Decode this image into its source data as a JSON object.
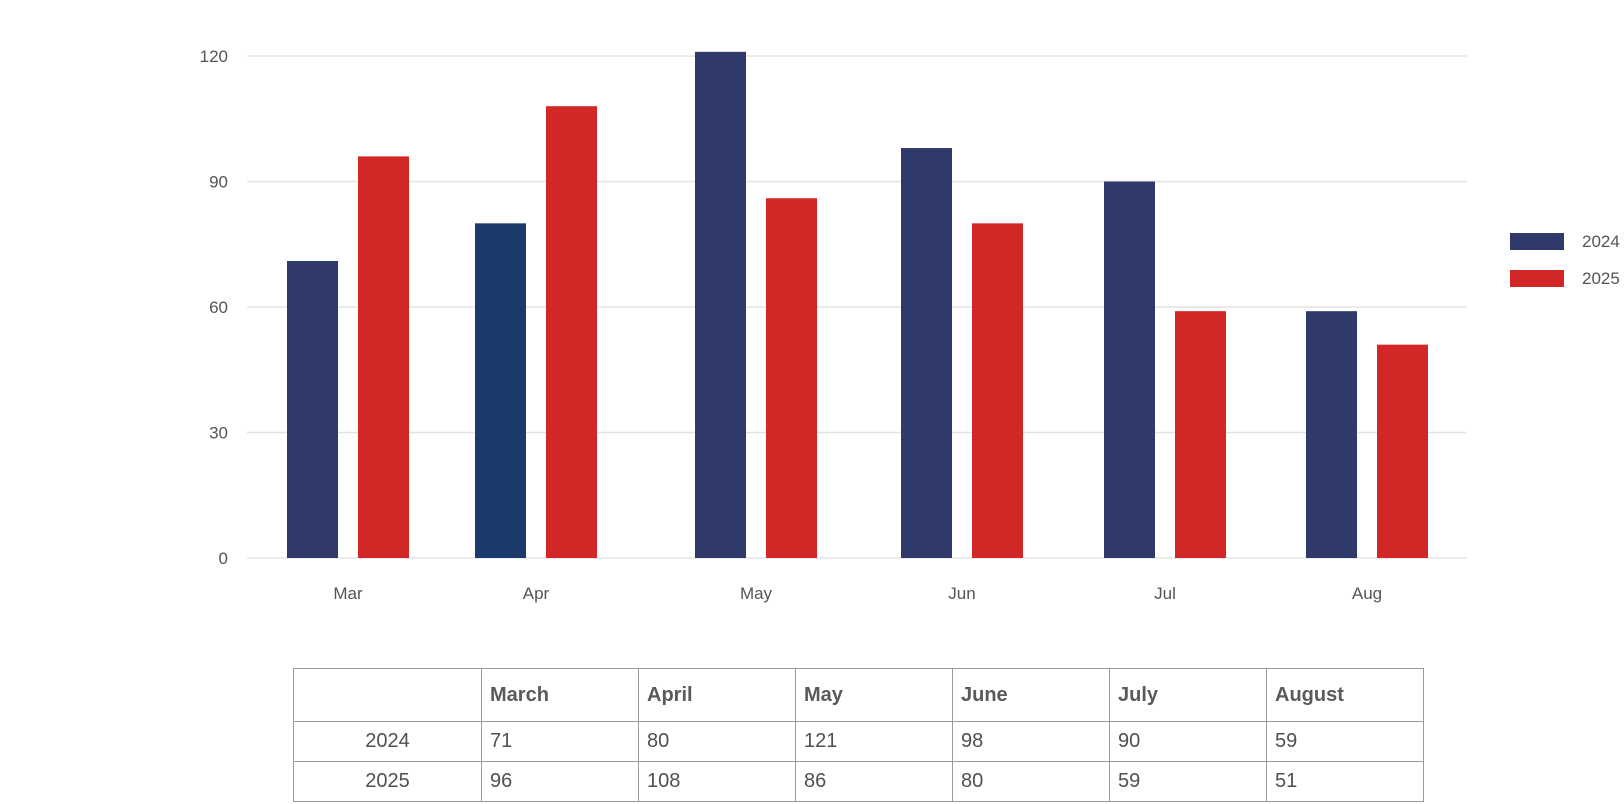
{
  "chart_data": {
    "type": "bar",
    "categories": [
      "Mar",
      "Apr",
      "May",
      "Jun",
      "Jul",
      "Aug"
    ],
    "series": [
      {
        "name": "2024",
        "values": [
          71,
          80,
          121,
          98,
          90,
          59
        ],
        "color": "#2f3a6b"
      },
      {
        "name": "2025",
        "values": [
          96,
          108,
          86,
          80,
          59,
          51
        ],
        "color": "#d32727"
      }
    ],
    "highlight_color": "#1a3a6c",
    "ylim": [
      0,
      120
    ],
    "yticks": [
      0,
      30,
      60,
      90,
      120
    ],
    "grid": true,
    "legend_position": "right",
    "title": "",
    "xlabel": "",
    "ylabel": ""
  },
  "table": {
    "columns": [
      "",
      "March",
      "April",
      "May",
      "June",
      "July",
      "August"
    ],
    "rows": [
      {
        "label": "2024",
        "cells": [
          "71",
          "80",
          "121",
          "98",
          "90",
          "59"
        ]
      },
      {
        "label": "2025",
        "cells": [
          "96",
          "108",
          "86",
          "80",
          "59",
          "51"
        ]
      }
    ]
  }
}
